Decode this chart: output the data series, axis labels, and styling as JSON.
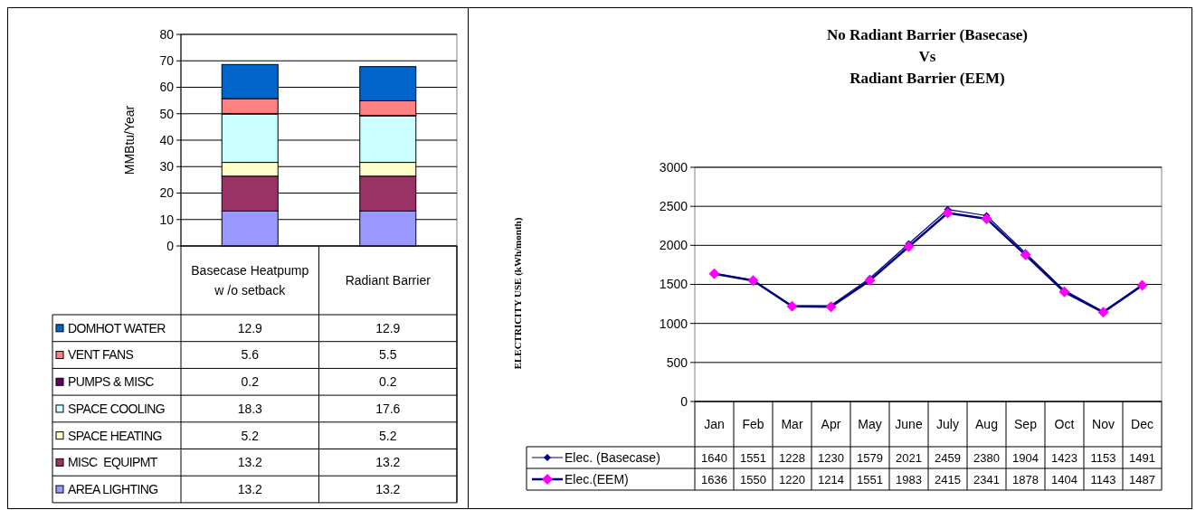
{
  "chart_data": [
    {
      "type": "bar",
      "stacked": true,
      "ylabel": "MMBtu/Year",
      "categories": [
        "Basecase Heatpump w /o setback",
        "Radiant Barrier"
      ],
      "ylim": [
        0,
        80
      ],
      "yticks": [
        0,
        10,
        20,
        30,
        40,
        50,
        60,
        70,
        80
      ],
      "grid": "y",
      "legend": "bottom",
      "series": [
        {
          "name": "AREA LIGHTING",
          "color": "#9999ff",
          "values": [
            13.2,
            13.2
          ],
          "value_labels": [
            "13.2",
            "13.2"
          ]
        },
        {
          "name": "MISC  EQUIPMT",
          "color": "#993366",
          "values": [
            13.2,
            13.2
          ],
          "value_labels": [
            "13.2",
            "13.2"
          ]
        },
        {
          "name": "SPACE HEATING",
          "color": "#ffffcc",
          "values": [
            5.2,
            5.2
          ],
          "value_labels": [
            "5.2",
            "5.2"
          ]
        },
        {
          "name": "SPACE COOLING",
          "color": "#ccffff",
          "values": [
            18.3,
            17.6
          ],
          "value_labels": [
            "18.3",
            "17.6"
          ]
        },
        {
          "name": "PUMPS & MISC",
          "color": "#660066",
          "values": [
            0.2,
            0.2
          ],
          "value_labels": [
            "0.2",
            "0.2"
          ]
        },
        {
          "name": "VENT FANS",
          "color": "#ff8080",
          "values": [
            5.6,
            5.5
          ],
          "value_labels": [
            "5.6",
            "5.5"
          ]
        },
        {
          "name": "DOMHOT WATER",
          "color": "#0066cc",
          "values": [
            12.9,
            12.9
          ],
          "value_labels": [
            "12.9",
            "12.9"
          ]
        }
      ]
    },
    {
      "type": "line",
      "title": "No Radiant Barrier (Basecase)\nVs\nRadiant Barrier (EEM)",
      "ylabel": "ELECTRICITY USE (kWh/month)",
      "categories": [
        "Jan",
        "Feb",
        "Mar",
        "Apr",
        "May",
        "June",
        "July",
        "Aug",
        "Sep",
        "Oct",
        "Nov",
        "Dec"
      ],
      "ylim": [
        0,
        3000
      ],
      "yticks": [
        0,
        500,
        1000,
        1500,
        2000,
        2500,
        3000
      ],
      "grid": "y",
      "legend": "bottom",
      "marker": "diamond",
      "data_labels": true,
      "series": [
        {
          "name": "Elec. (Basecase)",
          "color": "#000080",
          "values": [
            1640,
            1551,
            1228,
            1230,
            1579,
            2021,
            2459,
            2380,
            1904,
            1423,
            1153,
            1491
          ]
        },
        {
          "name": "Elec.(EEM)",
          "color": "#000080",
          "colors": [
            "#ff00ff",
            "#ff00ff",
            "#ff00ff",
            "#ff00ff",
            "#ff00ff",
            "#ff00ff",
            "#ff00ff",
            "#ff00ff",
            "#ff00ff",
            "#ff00ff",
            "#ff00ff",
            "#ff00ff"
          ],
          "values": [
            1636,
            1550,
            1220,
            1214,
            1551,
            1983,
            2415,
            2341,
            1878,
            1404,
            1143,
            1487
          ]
        }
      ]
    }
  ]
}
